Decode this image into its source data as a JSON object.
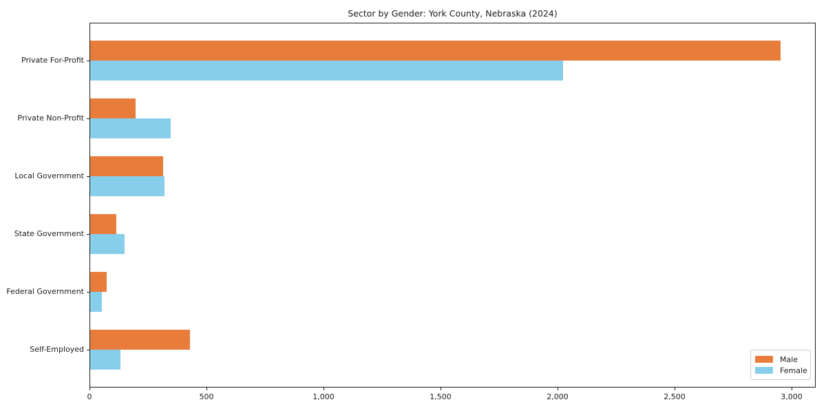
{
  "title": "Sector by Gender: York County, Nebraska (2024)",
  "colors": {
    "male": "#e87d3b",
    "female": "#87ceeb",
    "text": "#1a1a1a",
    "legend_border": "#cccccc"
  },
  "chart_data": {
    "type": "bar",
    "orientation": "horizontal",
    "title": "Sector by Gender: York County, Nebraska (2024)",
    "xlabel": "",
    "ylabel": "",
    "categories": [
      "Private For-Profit",
      "Private Non-Profit",
      "Local Government",
      "State Government",
      "Federal Government",
      "Self-Employed"
    ],
    "series": [
      {
        "name": "Male",
        "color": "#e87d3b",
        "values": [
          2950,
          195,
          312,
          112,
          70,
          425
        ]
      },
      {
        "name": "Female",
        "color": "#87ceeb",
        "values": [
          2020,
          345,
          317,
          146,
          51,
          130
        ]
      }
    ],
    "xlim": [
      0,
      3100
    ],
    "xticks": {
      "values": [
        0,
        500,
        1000,
        1500,
        2000,
        2500,
        3000
      ],
      "labels": [
        "0",
        "500",
        "1,000",
        "1,500",
        "2,000",
        "2,500",
        "3,000"
      ]
    },
    "grid": false,
    "legend_position": "lower right",
    "legend_entries": [
      "Male",
      "Female"
    ]
  }
}
